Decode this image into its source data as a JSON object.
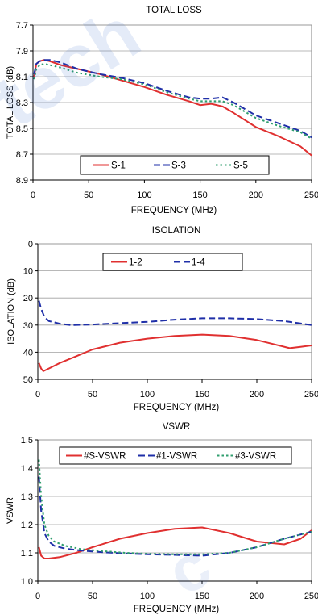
{
  "colors": {
    "red": "#e03030",
    "blue": "#1f2fa8",
    "green": "#2f9e6e",
    "watermark": "#2d62c8"
  },
  "chart_data": [
    {
      "type": "line",
      "title": "TOTAL LOSS",
      "xlabel": "FREQUENCY (MHz)",
      "ylabel": "TOTAL LOSS (dB)",
      "xlim": [
        0,
        250
      ],
      "ylim": [
        7.7,
        8.9
      ],
      "y_inverted": true,
      "xticks": [
        "0",
        "50",
        "100",
        "150",
        "200",
        "250"
      ],
      "yticks": [
        "7.7",
        "7.9",
        "8.1",
        "8.3",
        "8.5",
        "8.7",
        "8.9"
      ],
      "grid": "horizontal",
      "legend_position": "bottom",
      "series": [
        {
          "name": "S-1",
          "color": "red",
          "dash": "solid",
          "x": [
            1,
            3,
            6,
            10,
            15,
            25,
            40,
            60,
            80,
            100,
            120,
            140,
            150,
            160,
            170,
            180,
            200,
            220,
            240,
            250
          ],
          "y": [
            8.1,
            8.0,
            7.98,
            7.97,
            7.98,
            8.01,
            8.04,
            8.08,
            8.13,
            8.18,
            8.24,
            8.29,
            8.32,
            8.31,
            8.33,
            8.38,
            8.49,
            8.56,
            8.64,
            8.71
          ]
        },
        {
          "name": "S-3",
          "color": "blue",
          "dash": "long",
          "x": [
            1,
            3,
            6,
            10,
            15,
            25,
            40,
            60,
            80,
            100,
            120,
            140,
            150,
            160,
            170,
            180,
            200,
            220,
            240,
            250
          ],
          "y": [
            8.08,
            8.0,
            7.98,
            7.97,
            7.97,
            7.99,
            8.04,
            8.08,
            8.11,
            8.15,
            8.21,
            8.26,
            8.27,
            8.27,
            8.26,
            8.3,
            8.4,
            8.46,
            8.52,
            8.57
          ]
        },
        {
          "name": "S-5",
          "color": "green",
          "dash": "dot",
          "x": [
            1,
            3,
            6,
            10,
            15,
            25,
            40,
            60,
            80,
            100,
            120,
            140,
            150,
            160,
            170,
            180,
            200,
            220,
            240,
            250
          ],
          "y": [
            8.12,
            8.04,
            8.01,
            8.0,
            8.01,
            8.03,
            8.07,
            8.1,
            8.12,
            8.16,
            8.22,
            8.27,
            8.29,
            8.29,
            8.29,
            8.32,
            8.42,
            8.48,
            8.53,
            8.58
          ]
        }
      ]
    },
    {
      "type": "line",
      "title": "ISOLATION",
      "xlabel": "FREQUENCY (MHz)",
      "ylabel": "ISOLATION (dB)",
      "xlim": [
        0,
        250
      ],
      "ylim": [
        0,
        50
      ],
      "y_inverted": true,
      "xticks": [
        "0",
        "50",
        "100",
        "150",
        "200",
        "250"
      ],
      "yticks": [
        "0",
        "10",
        "20",
        "30",
        "40",
        "50"
      ],
      "grid": "horizontal",
      "legend_position": "top",
      "series": [
        {
          "name": "1-2",
          "color": "red",
          "dash": "solid",
          "x": [
            1,
            3,
            5,
            10,
            20,
            35,
            50,
            75,
            100,
            125,
            150,
            175,
            200,
            215,
            230,
            240,
            250
          ],
          "y": [
            44,
            46,
            47,
            46,
            44,
            41.5,
            39,
            36.5,
            35,
            34,
            33.5,
            34,
            35.5,
            37,
            38.5,
            38,
            37.5
          ]
        },
        {
          "name": "1-4",
          "color": "blue",
          "dash": "long",
          "x": [
            1,
            3,
            6,
            10,
            20,
            30,
            50,
            75,
            100,
            125,
            150,
            175,
            200,
            225,
            250
          ],
          "y": [
            21,
            24,
            27,
            28.5,
            29.5,
            30,
            29.8,
            29.3,
            28.8,
            28,
            27.5,
            27.5,
            27.8,
            28.5,
            30
          ]
        }
      ]
    },
    {
      "type": "line",
      "title": "VSWR",
      "xlabel": "FREQUENCY (MHz)",
      "ylabel": "VSWR",
      "xlim": [
        0,
        250
      ],
      "ylim": [
        1.0,
        1.5
      ],
      "y_inverted": false,
      "xticks": [
        "0",
        "50",
        "100",
        "150",
        "200",
        "250"
      ],
      "yticks": [
        "1.0",
        "1.1",
        "1.2",
        "1.3",
        "1.4",
        "1.5"
      ],
      "grid": "horizontal",
      "legend_position": "top",
      "series": [
        {
          "name": "#S-VSWR",
          "color": "red",
          "dash": "solid",
          "x": [
            1,
            3,
            6,
            10,
            20,
            35,
            50,
            75,
            100,
            125,
            150,
            175,
            200,
            225,
            240,
            250
          ],
          "y": [
            1.12,
            1.09,
            1.08,
            1.08,
            1.085,
            1.1,
            1.12,
            1.15,
            1.17,
            1.185,
            1.19,
            1.17,
            1.14,
            1.13,
            1.15,
            1.18
          ]
        },
        {
          "name": "#1-VSWR",
          "color": "blue",
          "dash": "long",
          "x": [
            1,
            3,
            6,
            10,
            15,
            25,
            40,
            60,
            80,
            100,
            125,
            150,
            175,
            200,
            225,
            250
          ],
          "y": [
            1.37,
            1.25,
            1.17,
            1.14,
            1.125,
            1.115,
            1.108,
            1.102,
            1.098,
            1.095,
            1.093,
            1.09,
            1.1,
            1.12,
            1.15,
            1.175
          ]
        },
        {
          "name": "#3-VSWR",
          "color": "green",
          "dash": "dot",
          "x": [
            1,
            3,
            6,
            10,
            15,
            25,
            40,
            60,
            80,
            100,
            125,
            150,
            175,
            200,
            225,
            250
          ],
          "y": [
            1.43,
            1.3,
            1.2,
            1.16,
            1.14,
            1.125,
            1.113,
            1.106,
            1.1,
            1.097,
            1.095,
            1.095,
            1.1,
            1.12,
            1.15,
            1.175
          ]
        }
      ]
    }
  ]
}
